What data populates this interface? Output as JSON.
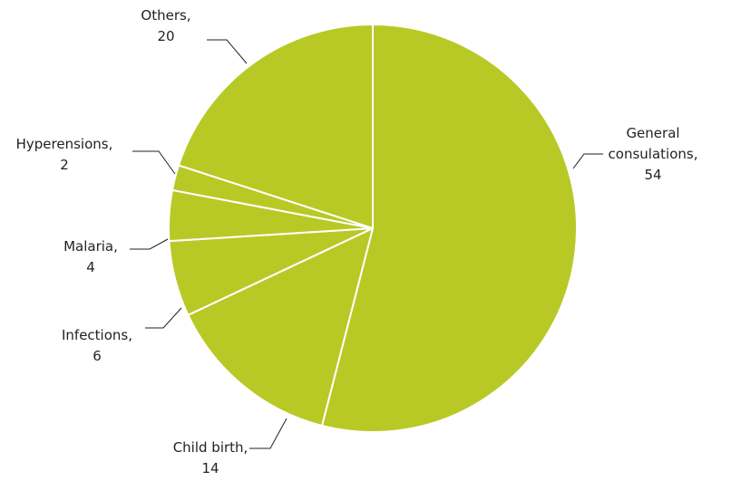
{
  "chart_data": {
    "type": "pie",
    "categories": [
      "General consulations,",
      "Child birth,",
      "Infections,",
      "Malaria,",
      "Hyperensions,",
      "Others,"
    ],
    "values": [
      54,
      14,
      6,
      4,
      2,
      20
    ],
    "color": "#b8c926"
  }
}
